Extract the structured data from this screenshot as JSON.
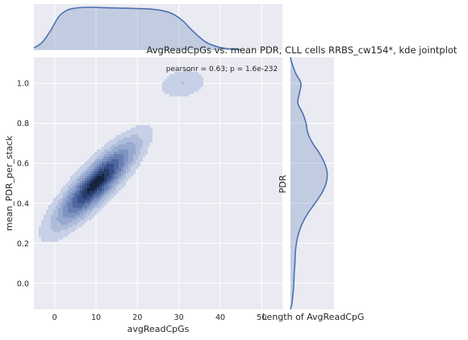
{
  "chart_data": {
    "type": "kde jointplot",
    "title": "AvgReadCpGs vs. mean PDR, CLL cells RRBS_cw154*, kde jointplot",
    "annotation": "pearsonr = 0.63; p = 1.6e-232",
    "xlabel": "avgReadCpGs",
    "ylabel": "mean_PDR_per_stack",
    "right_ylabel": "PDR",
    "right_xlabel": "Length of AvgReadCpG",
    "xlim": [
      -5,
      55
    ],
    "ylim": [
      -0.13,
      1.13
    ],
    "x_ticks": [
      0,
      10,
      20,
      30,
      40,
      50
    ],
    "x_tick_labels": [
      "0",
      "10",
      "20",
      "30",
      "40",
      "50"
    ],
    "y_ticks": [
      0.0,
      0.2,
      0.4,
      0.6,
      0.8,
      1.0
    ],
    "y_tick_labels": [
      "0.0",
      "0.2",
      "0.4",
      "0.6",
      "0.8",
      "1.0"
    ],
    "grid": true,
    "palette": {
      "background": "#EAEAF2",
      "grid": "#FFFFFF",
      "line": "#4C72B0",
      "fill": "#4C72B0",
      "text": "#262626",
      "levels": [
        "#C6D0E6",
        "#AFBDDB",
        "#97A9CF",
        "#7F94C1",
        "#677FB2",
        "#4F67A0",
        "#3A4F86",
        "#283A68",
        "#18243F"
      ]
    },
    "kde_components": [
      {
        "x": 10,
        "y": 0.5,
        "sx": 5.6,
        "sy": 0.12,
        "rho": 0.85,
        "w": 1.0
      },
      {
        "x": 31,
        "y": 1.0,
        "sx": 3.5,
        "sy": 0.045,
        "rho": 0.2,
        "w": 0.14
      },
      {
        "x": 1.5,
        "y": 0.1,
        "sx": 1.3,
        "sy": 0.04,
        "rho": 0.0,
        "w": 0.05
      },
      {
        "x": 32.5,
        "y": 0.01,
        "sx": 1.2,
        "sy": 0.02,
        "rho": 0.0,
        "w": 0.035
      }
    ],
    "kde_levels": [
      0.05,
      0.14,
      0.24,
      0.36,
      0.48,
      0.6,
      0.72,
      0.84,
      0.94
    ],
    "x_marginal": [
      [
        -5,
        0.05
      ],
      [
        -3,
        0.18
      ],
      [
        -1,
        0.45
      ],
      [
        1,
        0.78
      ],
      [
        3,
        0.93
      ],
      [
        5,
        0.98
      ],
      [
        8,
        1.0
      ],
      [
        12,
        0.99
      ],
      [
        16,
        0.98
      ],
      [
        20,
        0.97
      ],
      [
        24,
        0.95
      ],
      [
        27,
        0.9
      ],
      [
        29,
        0.82
      ],
      [
        31,
        0.68
      ],
      [
        33,
        0.48
      ],
      [
        35,
        0.3
      ],
      [
        37,
        0.16
      ],
      [
        40,
        0.06
      ],
      [
        43,
        0.02
      ],
      [
        45,
        0.01
      ]
    ],
    "y_marginal": [
      [
        -0.13,
        0.0
      ],
      [
        -0.1,
        0.04
      ],
      [
        -0.05,
        0.07
      ],
      [
        0.0,
        0.09
      ],
      [
        0.05,
        0.1
      ],
      [
        0.1,
        0.12
      ],
      [
        0.15,
        0.13
      ],
      [
        0.2,
        0.16
      ],
      [
        0.25,
        0.22
      ],
      [
        0.3,
        0.32
      ],
      [
        0.35,
        0.47
      ],
      [
        0.4,
        0.66
      ],
      [
        0.45,
        0.84
      ],
      [
        0.5,
        0.96
      ],
      [
        0.55,
        0.99
      ],
      [
        0.6,
        0.92
      ],
      [
        0.65,
        0.78
      ],
      [
        0.7,
        0.6
      ],
      [
        0.75,
        0.47
      ],
      [
        0.8,
        0.42
      ],
      [
        0.85,
        0.33
      ],
      [
        0.9,
        0.2
      ],
      [
        0.95,
        0.24
      ],
      [
        1.0,
        0.28
      ],
      [
        1.05,
        0.14
      ],
      [
        1.1,
        0.04
      ],
      [
        1.13,
        0.0
      ]
    ]
  }
}
